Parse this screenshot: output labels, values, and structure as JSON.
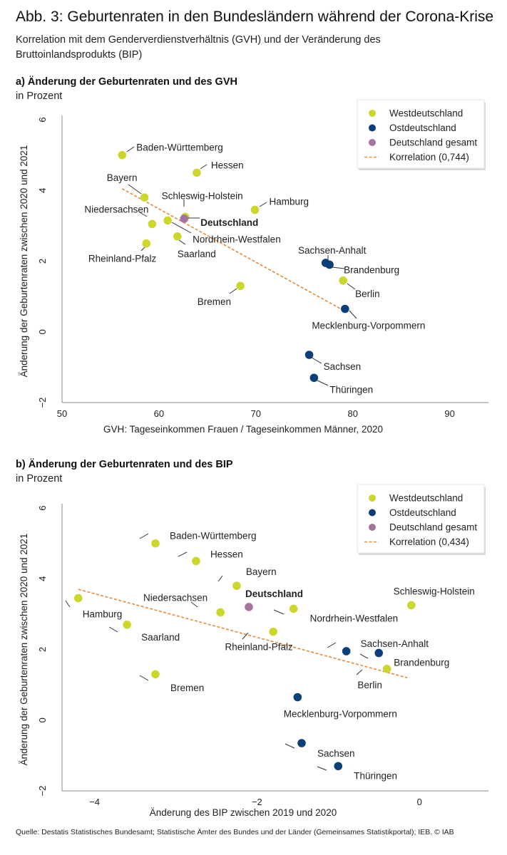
{
  "header": {
    "title": "Abb. 3: Geburtenraten in den Bundesländern während der Corona-Krise",
    "subtitle": "Korrelation mit dem Genderverdienstverhältnis (GVH) und der Veränderung des Bruttoinlandsprodukts (BIP)"
  },
  "source": "Quelle: Destatis Statistisches Bundesamt; Statistische Ämter des Bundes und der Länder (Gemeinsames Statistikportal); IEB. © IAB",
  "colors": {
    "west": "#cdd62b",
    "ost": "#0b3f79",
    "gesamt": "#a5739f",
    "korrelation": "#e8893a",
    "axis": "#888888"
  },
  "chart_data": [
    {
      "type": "scatter",
      "title": "a) Änderung der Geburtenraten und des GVH",
      "unit": "in Prozent",
      "xlabel": "GVH: Tageseinkommen Frauen / Tageseinkommen Männer, 2020",
      "ylabel": "Änderung der Geburtenraten zwischen 2020 und 2021",
      "xlim": [
        50,
        94
      ],
      "ylim": [
        -2,
        6
      ],
      "xticks": [
        "50",
        "60",
        "70",
        "80",
        "90"
      ],
      "xtick_values": [
        50,
        60,
        70,
        80,
        90
      ],
      "yticks": [
        "−2",
        "0",
        "2",
        "4",
        "6"
      ],
      "ytick_values": [
        -2,
        0,
        2,
        4,
        6
      ],
      "grid": false,
      "legend_position": "top-right",
      "legend": [
        {
          "label": "Westdeutschland",
          "group": "west"
        },
        {
          "label": "Ostdeutschland",
          "group": "ost"
        },
        {
          "label": "Deutschland gesamt",
          "group": "gesamt"
        },
        {
          "label": "Korrelation (0,744)",
          "group": "korrelation"
        }
      ],
      "trendline": {
        "x": [
          56.2,
          79.1
        ],
        "y": [
          4.05,
          0.6
        ]
      },
      "points": [
        {
          "label": "Baden-Württemberg",
          "group": "west",
          "x": 56.2,
          "y": 5.0
        },
        {
          "label": "Hessen",
          "group": "west",
          "x": 63.9,
          "y": 4.5
        },
        {
          "label": "Bayern",
          "group": "west",
          "x": 58.5,
          "y": 3.8
        },
        {
          "label": "Schleswig-Holstein",
          "group": "west",
          "x": 62.7,
          "y": 3.25
        },
        {
          "label": "Hamburg",
          "group": "west",
          "x": 69.9,
          "y": 3.45
        },
        {
          "label": "Niedersachsen",
          "group": "west",
          "x": 59.3,
          "y": 3.05
        },
        {
          "label": "Deutschland",
          "group": "gesamt",
          "x": 62.6,
          "y": 3.2
        },
        {
          "label": "Nordrhein-Westfalen",
          "group": "west",
          "x": 60.9,
          "y": 3.15
        },
        {
          "label": "Saarland",
          "group": "west",
          "x": 61.9,
          "y": 2.7
        },
        {
          "label": "Rheinland-Pfalz",
          "group": "west",
          "x": 58.7,
          "y": 2.5
        },
        {
          "label": "Bremen",
          "group": "west",
          "x": 68.4,
          "y": 1.3
        },
        {
          "label": "Sachsen-Anhalt",
          "group": "ost",
          "x": 77.2,
          "y": 1.95
        },
        {
          "label": "Brandenburg",
          "group": "ost",
          "x": 77.6,
          "y": 1.9
        },
        {
          "label": "Berlin",
          "group": "west",
          "x": 79.0,
          "y": 1.45
        },
        {
          "label": "Mecklenburg-Vorpommern",
          "group": "ost",
          "x": 79.2,
          "y": 0.65
        },
        {
          "label": "Sachsen",
          "group": "ost",
          "x": 75.5,
          "y": -0.65
        },
        {
          "label": "Thüringen",
          "group": "ost",
          "x": 76.0,
          "y": -1.3
        }
      ]
    },
    {
      "type": "scatter",
      "title": "b)  Änderung der Geburtenraten und des BIP",
      "unit": "in Prozent",
      "xlabel": "Änderung des BIP zwischen 2019 und 2020",
      "ylabel": "Änderung der Geburtenraten zwischen 2020 und 2021",
      "xlim": [
        -4.4,
        0.85
      ],
      "ylim": [
        -2,
        6
      ],
      "xticks": [
        "−4",
        "−2",
        "0"
      ],
      "xtick_values": [
        -4,
        -2,
        0
      ],
      "yticks": [
        "−2",
        "0",
        "2",
        "4",
        "6"
      ],
      "ytick_values": [
        -2,
        0,
        2,
        4,
        6
      ],
      "grid": false,
      "legend_position": "top-right",
      "legend": [
        {
          "label": "Westdeutschland",
          "group": "west"
        },
        {
          "label": "Ostdeutschland",
          "group": "ost"
        },
        {
          "label": "Deutschland gesamt",
          "group": "gesamt"
        },
        {
          "label": "Korrelation (0,434)",
          "group": "korrelation"
        }
      ],
      "trendline": {
        "x": [
          -4.2,
          -0.15
        ],
        "y": [
          3.7,
          1.2
        ]
      },
      "points": [
        {
          "label": "Baden-Württemberg",
          "group": "west",
          "x": -3.25,
          "y": 5.0
        },
        {
          "label": "Hessen",
          "group": "west",
          "x": -2.75,
          "y": 4.5
        },
        {
          "label": "Bayern",
          "group": "west",
          "x": -2.25,
          "y": 3.8
        },
        {
          "label": "Hamburg",
          "group": "west",
          "x": -4.2,
          "y": 3.45
        },
        {
          "label": "Niedersachsen",
          "group": "west",
          "x": -2.45,
          "y": 3.05
        },
        {
          "label": "Deutschland",
          "group": "gesamt",
          "x": -2.1,
          "y": 3.2
        },
        {
          "label": "Nordrhein-Westfalen",
          "group": "west",
          "x": -1.55,
          "y": 3.15
        },
        {
          "label": "Schleswig-Holstein",
          "group": "west",
          "x": -0.1,
          "y": 3.25
        },
        {
          "label": "Saarland",
          "group": "west",
          "x": -3.6,
          "y": 2.7
        },
        {
          "label": "Rheinland-Pfalz",
          "group": "west",
          "x": -1.8,
          "y": 2.5
        },
        {
          "label": "Sachsen-Anhalt",
          "group": "ost",
          "x": -0.9,
          "y": 1.95
        },
        {
          "label": "Brandenburg",
          "group": "ost",
          "x": -0.5,
          "y": 1.9
        },
        {
          "label": "Berlin",
          "group": "west",
          "x": -0.4,
          "y": 1.45
        },
        {
          "label": "Bremen",
          "group": "west",
          "x": -3.25,
          "y": 1.3
        },
        {
          "label": "Mecklenburg-Vorpommern",
          "group": "ost",
          "x": -1.5,
          "y": 0.65
        },
        {
          "label": "Sachsen",
          "group": "ost",
          "x": -1.45,
          "y": -0.65
        },
        {
          "label": "Thüringen",
          "group": "ost",
          "x": -1.0,
          "y": -1.3
        }
      ]
    }
  ]
}
